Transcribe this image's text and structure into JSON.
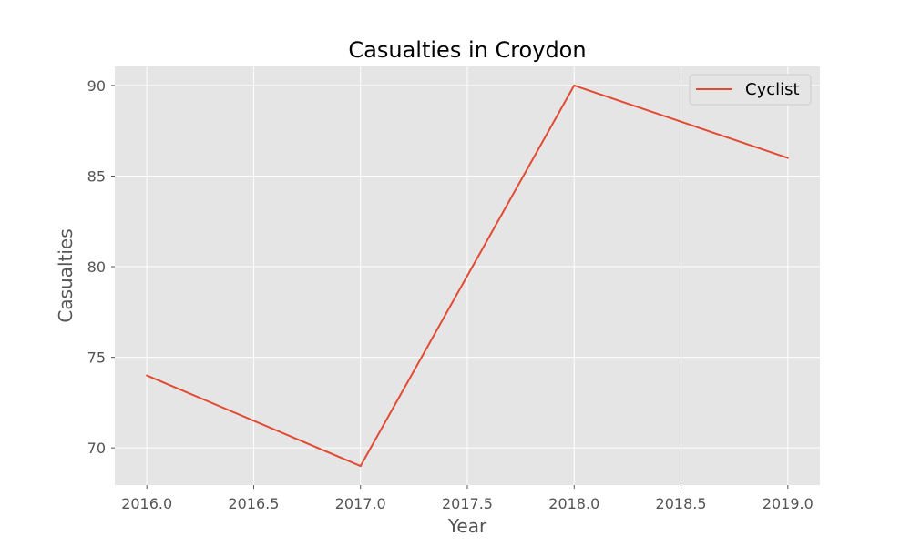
{
  "chart_data": {
    "type": "line",
    "title": "Casualties in Croydon",
    "xlabel": "Year",
    "ylabel": "Casualties",
    "x": [
      2016,
      2017,
      2018,
      2019
    ],
    "series": [
      {
        "name": "Cyclist",
        "values": [
          74,
          69,
          90,
          86
        ],
        "color": "#e24a33"
      }
    ],
    "xlim": [
      2015.85,
      2019.15
    ],
    "ylim": [
      67.95,
      91.05
    ],
    "xticks": [
      2016.0,
      2016.5,
      2017.0,
      2017.5,
      2018.0,
      2018.5,
      2019.0
    ],
    "xtick_labels": [
      "2016.0",
      "2016.5",
      "2017.0",
      "2017.5",
      "2018.0",
      "2018.5",
      "2019.0"
    ],
    "yticks": [
      70,
      75,
      80,
      85,
      90
    ],
    "ytick_labels": [
      "70",
      "75",
      "80",
      "85",
      "90"
    ],
    "grid": true,
    "legend_position": "top-right",
    "plot_background": "#e5e5e5",
    "grid_color": "#ffffff"
  }
}
